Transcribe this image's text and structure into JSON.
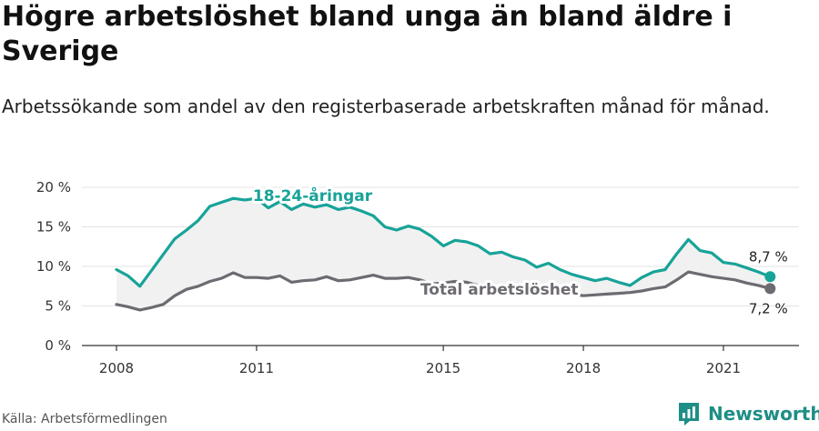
{
  "title": "Högre arbetslöshet bland unga än bland äldre i Sverige",
  "subtitle": "Arbetssökande som andel av den registerbaserade arbetskraften månad för månad.",
  "source": "Källa: Arbetsförmedlingen",
  "brand": "Newsworthy",
  "colors": {
    "youth": "#17a398",
    "total": "#6e6a71",
    "fill": "#f1f1f1",
    "brand": "#1e8e86"
  },
  "chart_data": {
    "type": "line",
    "title": "Högre arbetslöshet bland unga än bland äldre i Sverige",
    "xlabel": "",
    "ylabel": "",
    "xlim": [
      2008.0,
      2023.3
    ],
    "ylim": [
      0,
      20
    ],
    "x_ticks": [
      2008,
      2011,
      2015,
      2018,
      2021
    ],
    "x_tick_labels": [
      "2008",
      "2011",
      "2015",
      "2018",
      "2021"
    ],
    "y_ticks": [
      0,
      5,
      10,
      15,
      20
    ],
    "y_tick_labels": [
      "0 %",
      "5 %",
      "10 %",
      "15 %",
      "20 %"
    ],
    "grid": "horizontal",
    "series": [
      {
        "name": "18-24-åringar",
        "label": "18-24-åringar",
        "end_label": "8,7 %",
        "x": [
          2008.0,
          2008.25,
          2008.5,
          2008.75,
          2009.0,
          2009.25,
          2009.5,
          2009.75,
          2010.0,
          2010.25,
          2010.5,
          2010.75,
          2011.0,
          2011.25,
          2011.5,
          2011.75,
          2012.0,
          2012.25,
          2012.5,
          2012.75,
          2013.0,
          2013.25,
          2013.5,
          2013.75,
          2014.0,
          2014.25,
          2014.5,
          2014.75,
          2015.0,
          2015.25,
          2015.5,
          2015.75,
          2016.0,
          2016.25,
          2016.5,
          2016.75,
          2017.0,
          2017.25,
          2017.5,
          2017.75,
          2018.0,
          2018.25,
          2018.5,
          2018.75,
          2019.0,
          2019.25,
          2019.5,
          2019.75,
          2020.0,
          2020.25,
          2020.5,
          2020.75,
          2021.0,
          2021.25,
          2021.5,
          2021.75,
          2022.0
        ],
        "values": [
          9.6,
          8.8,
          7.5,
          9.5,
          11.5,
          13.5,
          14.6,
          15.8,
          17.6,
          18.1,
          18.6,
          18.4,
          18.6,
          17.4,
          18.2,
          17.2,
          17.9,
          17.5,
          17.8,
          17.2,
          17.5,
          17.0,
          16.4,
          15.0,
          14.6,
          15.1,
          14.7,
          13.8,
          12.6,
          13.3,
          13.1,
          12.6,
          11.6,
          11.8,
          11.2,
          10.8,
          9.9,
          10.4,
          9.6,
          9.0,
          8.6,
          8.2,
          8.5,
          8.0,
          7.6,
          8.6,
          9.3,
          9.6,
          11.6,
          13.4,
          12.0,
          11.7,
          10.5,
          10.3,
          9.8,
          9.3,
          8.7
        ]
      },
      {
        "name": "Total arbetslöshet",
        "label": "Total arbetslöshet",
        "end_label": "7,2 %",
        "x": [
          2008.0,
          2008.25,
          2008.5,
          2008.75,
          2009.0,
          2009.25,
          2009.5,
          2009.75,
          2010.0,
          2010.25,
          2010.5,
          2010.75,
          2011.0,
          2011.25,
          2011.5,
          2011.75,
          2012.0,
          2012.25,
          2012.5,
          2012.75,
          2013.0,
          2013.25,
          2013.5,
          2013.75,
          2014.0,
          2014.25,
          2014.5,
          2014.75,
          2015.0,
          2015.25,
          2015.5,
          2015.75,
          2016.0,
          2016.25,
          2016.5,
          2016.75,
          2017.0,
          2017.25,
          2017.5,
          2017.75,
          2018.0,
          2018.25,
          2018.5,
          2018.75,
          2019.0,
          2019.25,
          2019.5,
          2019.75,
          2020.0,
          2020.25,
          2020.5,
          2020.75,
          2021.0,
          2021.25,
          2021.5,
          2021.75,
          2022.0
        ],
        "values": [
          5.2,
          4.9,
          4.5,
          4.8,
          5.2,
          6.3,
          7.1,
          7.5,
          8.1,
          8.5,
          9.2,
          8.6,
          8.6,
          8.5,
          8.8,
          8.0,
          8.2,
          8.3,
          8.7,
          8.2,
          8.3,
          8.6,
          8.9,
          8.5,
          8.5,
          8.6,
          8.3,
          7.8,
          7.9,
          8.1,
          8.0,
          7.6,
          7.4,
          7.5,
          7.2,
          7.0,
          6.8,
          6.9,
          6.7,
          6.5,
          6.3,
          6.4,
          6.5,
          6.6,
          6.7,
          6.9,
          7.2,
          7.4,
          8.3,
          9.3,
          9.0,
          8.7,
          8.5,
          8.3,
          7.9,
          7.6,
          7.2
        ]
      }
    ]
  }
}
